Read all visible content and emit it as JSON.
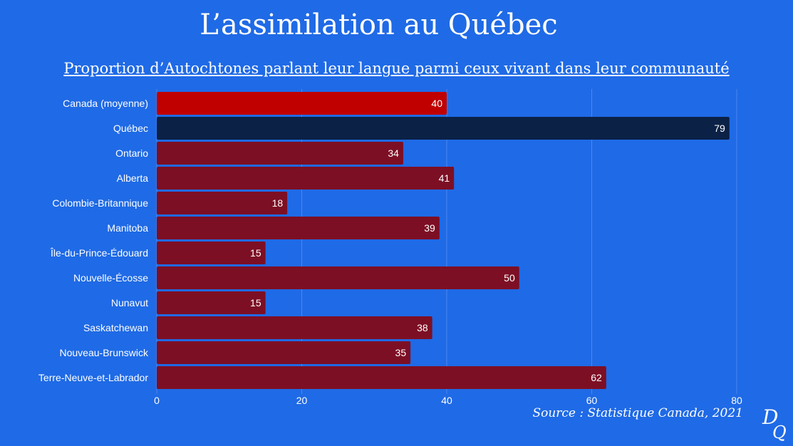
{
  "chart_data": {
    "type": "bar",
    "orientation": "horizontal",
    "title": "L’assimilation au Québec",
    "subtitle": "Proportion d’Autochtones parlant leur langue parmi ceux vivant dans leur communauté",
    "categories": [
      "Canada (moyenne)",
      "Québec",
      "Ontario",
      "Alberta",
      "Colombie-Britannique",
      "Manitoba",
      "Île-du-Prince-Édouard",
      "Nouvelle-Écosse",
      "Nunavut",
      "Saskatchewan",
      "Nouveau-Brunswick",
      "Terre-Neuve-et-Labrador"
    ],
    "values": [
      40,
      79,
      34,
      41,
      18,
      39,
      15,
      50,
      15,
      38,
      35,
      62
    ],
    "bar_colors": [
      "#c00000",
      "#0b2146",
      "#7d0f24",
      "#7d0f24",
      "#7d0f24",
      "#7d0f24",
      "#7d0f24",
      "#7d0f24",
      "#7d0f24",
      "#7d0f24",
      "#7d0f24",
      "#7d0f24"
    ],
    "xlim": [
      0,
      80
    ],
    "xticks": [
      "0",
      "20",
      "40",
      "60",
      "80"
    ],
    "grid": true,
    "source": "Source : Statistique Canada, 2021"
  },
  "logo": {
    "icon": "dq-monogram-icon"
  },
  "colors": {
    "background": "#1f6ae6",
    "gridline": "#4a87ee",
    "text": "#ffffff"
  }
}
